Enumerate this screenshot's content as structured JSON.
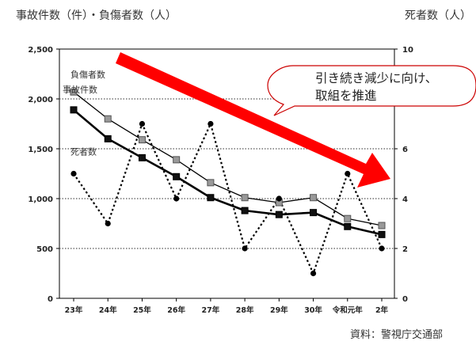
{
  "chart_data": {
    "type": "line",
    "y_left_label": "事故件数（件）・負傷者数（人）",
    "y_right_label": "死者数（人）",
    "categories": [
      "23年",
      "24年",
      "25年",
      "26年",
      "27年",
      "28年",
      "29年",
      "30年",
      "令和元年",
      "2年"
    ],
    "y_left_ticks": [
      "2,500",
      "2,000",
      "1,500",
      "1,000",
      "500",
      "0"
    ],
    "y_left_range": [
      0,
      2500
    ],
    "y_right_ticks": [
      "10",
      "8",
      "6",
      "4",
      "2",
      "0"
    ],
    "y_right_range": [
      0,
      10
    ],
    "grid": true,
    "series": [
      {
        "name": "負傷者数",
        "axis": "left",
        "marker": "square-gray",
        "values": [
          2070,
          1800,
          1590,
          1390,
          1160,
          1010,
          960,
          1010,
          800,
          730
        ]
      },
      {
        "name": "事故件数",
        "axis": "left",
        "marker": "square-black",
        "values": [
          1890,
          1600,
          1410,
          1220,
          1010,
          880,
          840,
          860,
          720,
          640
        ]
      },
      {
        "name": "死者数",
        "axis": "right",
        "marker": "dot-dashed",
        "values": [
          5,
          3,
          7,
          4,
          7,
          2,
          4,
          1,
          5,
          2
        ]
      }
    ],
    "annotation": {
      "line1": "引き続き減少に向け、",
      "line2": "取組を推進"
    },
    "source": "資料：警視庁交通部",
    "colors": {
      "arrow": "#ff0000",
      "injured_marker": "#999999",
      "accidents_marker": "#222222"
    }
  }
}
